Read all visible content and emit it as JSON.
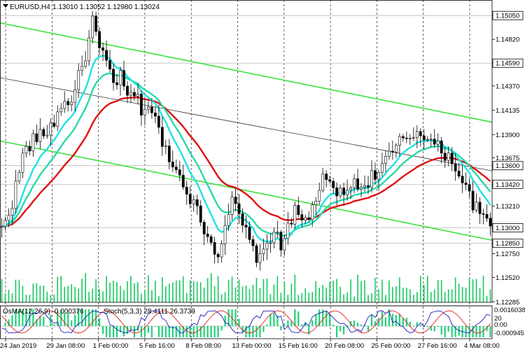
{
  "header": {
    "symbol": "EURUSD,H4",
    "ohlc": "1.13010 1.13052 1.12980 1.13024"
  },
  "osc_header": {
    "osma": "OsMA(12,26,9) -0.000376",
    "stoch": "Stoch(5,3,3) 28.4111 26.3739"
  },
  "osc_axis": {
    "top": "0.0016038",
    "mid": "0.00",
    "bottom": "-0.000945",
    "stoch_mark": "20"
  },
  "colors": {
    "candle": "#000000",
    "green_channel": "#3ce23c",
    "ema_red": "#e01010",
    "ema_aqua": "#1ee3e3",
    "ema_teal": "#28d9a8",
    "ema_black": "#333333",
    "volume": "#18c860",
    "osma_hist": "#21d17a",
    "stoch_main": "#1e1ebe",
    "stoch_signal": "#e01e1e"
  },
  "chart_data": {
    "type": "candlestick",
    "symbol": "EURUSD",
    "timeframe": "H4",
    "ylim": [
      1.1228,
      1.152
    ],
    "y_ticks": [
      1.1505,
      1.1482,
      1.1459,
      1.1437,
      1.14135,
      1.139,
      1.13675,
      1.136,
      1.1342,
      1.1321,
      1.13,
      1.1285,
      1.1275,
      1.1252,
      1.12285
    ],
    "highlighted_levels": [
      1.1505,
      1.1459,
      1.136,
      1.1342,
      1.13,
      1.1285
    ],
    "x_labels": [
      "24 Jan 2019",
      "29 Jan 08:00",
      "1 Feb 00:00",
      "5 Feb 16:00",
      "8 Feb 08:00",
      "13 Feb 00:00",
      "15 Feb 16:00",
      "20 Feb 08:00",
      "25 Feb 00:00",
      "27 Feb 16:00",
      "4 Mar 08:00"
    ],
    "anchors": [
      [
        0,
        1.1298
      ],
      [
        3,
        1.1325
      ],
      [
        6,
        1.137
      ],
      [
        9,
        1.1385
      ],
      [
        12,
        1.139
      ],
      [
        15,
        1.1402
      ],
      [
        17,
        1.142
      ],
      [
        19,
        1.1418
      ],
      [
        21,
        1.1435
      ],
      [
        23,
        1.1455
      ],
      [
        25,
        1.148
      ],
      [
        26,
        1.1502
      ],
      [
        28,
        1.147
      ],
      [
        30,
        1.146
      ],
      [
        32,
        1.144
      ],
      [
        34,
        1.1445
      ],
      [
        36,
        1.1425
      ],
      [
        38,
        1.143
      ],
      [
        40,
        1.1415
      ],
      [
        42,
        1.1418
      ],
      [
        44,
        1.1405
      ],
      [
        46,
        1.138
      ],
      [
        48,
        1.137
      ],
      [
        50,
        1.1355
      ],
      [
        52,
        1.1345
      ],
      [
        54,
        1.133
      ],
      [
        56,
        1.1315
      ],
      [
        58,
        1.13
      ],
      [
        60,
        1.1285
      ],
      [
        62,
        1.1275
      ],
      [
        64,
        1.1305
      ],
      [
        66,
        1.1325
      ],
      [
        68,
        1.131
      ],
      [
        70,
        1.1295
      ],
      [
        72,
        1.1278
      ],
      [
        74,
        1.1268
      ],
      [
        76,
        1.1285
      ],
      [
        78,
        1.1298
      ],
      [
        80,
        1.128
      ],
      [
        82,
        1.1305
      ],
      [
        84,
        1.1315
      ],
      [
        86,
        1.1305
      ],
      [
        88,
        1.131
      ],
      [
        90,
        1.133
      ],
      [
        92,
        1.1345
      ],
      [
        94,
        1.134
      ],
      [
        96,
        1.1335
      ],
      [
        98,
        1.133
      ],
      [
        100,
        1.1345
      ],
      [
        102,
        1.1338
      ],
      [
        104,
        1.1342
      ],
      [
        106,
        1.135
      ],
      [
        108,
        1.1355
      ],
      [
        110,
        1.1365
      ],
      [
        112,
        1.1372
      ],
      [
        114,
        1.1382
      ],
      [
        116,
        1.1388
      ],
      [
        118,
        1.139
      ],
      [
        120,
        1.1395
      ],
      [
        122,
        1.1385
      ],
      [
        124,
        1.138
      ],
      [
        126,
        1.1375
      ],
      [
        128,
        1.1368
      ],
      [
        130,
        1.136
      ],
      [
        132,
        1.1345
      ],
      [
        134,
        1.133
      ],
      [
        136,
        1.1318
      ],
      [
        138,
        1.1308
      ],
      [
        140,
        1.1302
      ]
    ]
  }
}
